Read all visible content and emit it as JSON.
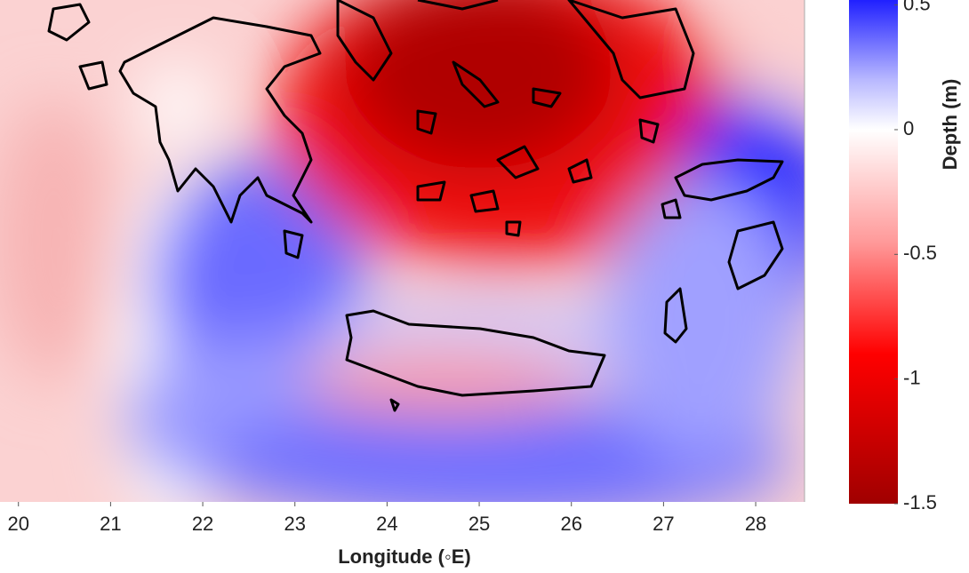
{
  "chart_data": {
    "type": "heatmap",
    "x_label": "Longitude (◦E)",
    "xlim": [
      19.8,
      28.53
    ],
    "xticks": [
      20,
      21,
      22,
      23,
      24,
      25,
      26,
      27,
      28
    ],
    "colorbar": {
      "label": "Depth (m)",
      "lim": [
        -1.5,
        0.52
      ],
      "ticks": [
        0.5,
        0,
        -0.5,
        -1,
        -1.5
      ],
      "color_stops": [
        {
          "value": 0.52,
          "color": "#2020ff"
        },
        {
          "value": 0.2,
          "color": "#b8b8ff"
        },
        {
          "value": 0,
          "color": "#ffffff"
        },
        {
          "value": -0.45,
          "color": "#ff9a9a"
        },
        {
          "value": -0.9,
          "color": "#ff0000"
        },
        {
          "value": -1.5,
          "color": "#a00000"
        }
      ]
    }
  }
}
